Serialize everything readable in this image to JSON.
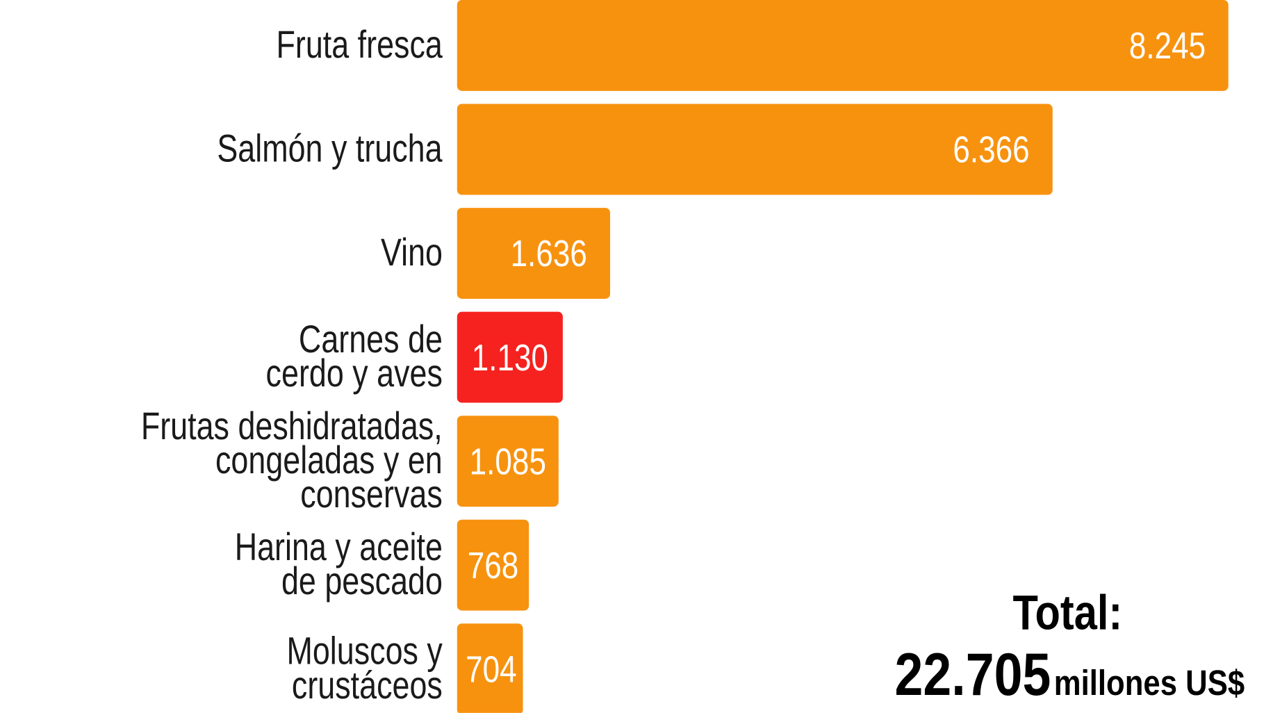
{
  "chart_data": {
    "type": "bar",
    "orientation": "horizontal",
    "categories": [
      "Fruta fresca",
      "Salmón y trucha",
      "Vino",
      "Carnes de\ncerdo y aves",
      "Frutas deshidratadas,\ncongeladas y en conservas",
      "Harina y aceite\nde pescado",
      "Moluscos y\ncrustáceos"
    ],
    "values": [
      8245,
      6366,
      1636,
      1130,
      1085,
      768,
      704
    ],
    "value_labels": [
      "8.245",
      "6.366",
      "1.636",
      "1.130",
      "1.085",
      "768",
      "704"
    ],
    "colors": [
      "#f7920f",
      "#f7920f",
      "#f7920f",
      "#f5221f",
      "#f7920f",
      "#f7920f",
      "#f7920f"
    ],
    "total": {
      "label": "Total:",
      "value": "22.705",
      "unit": "millones US$"
    }
  }
}
